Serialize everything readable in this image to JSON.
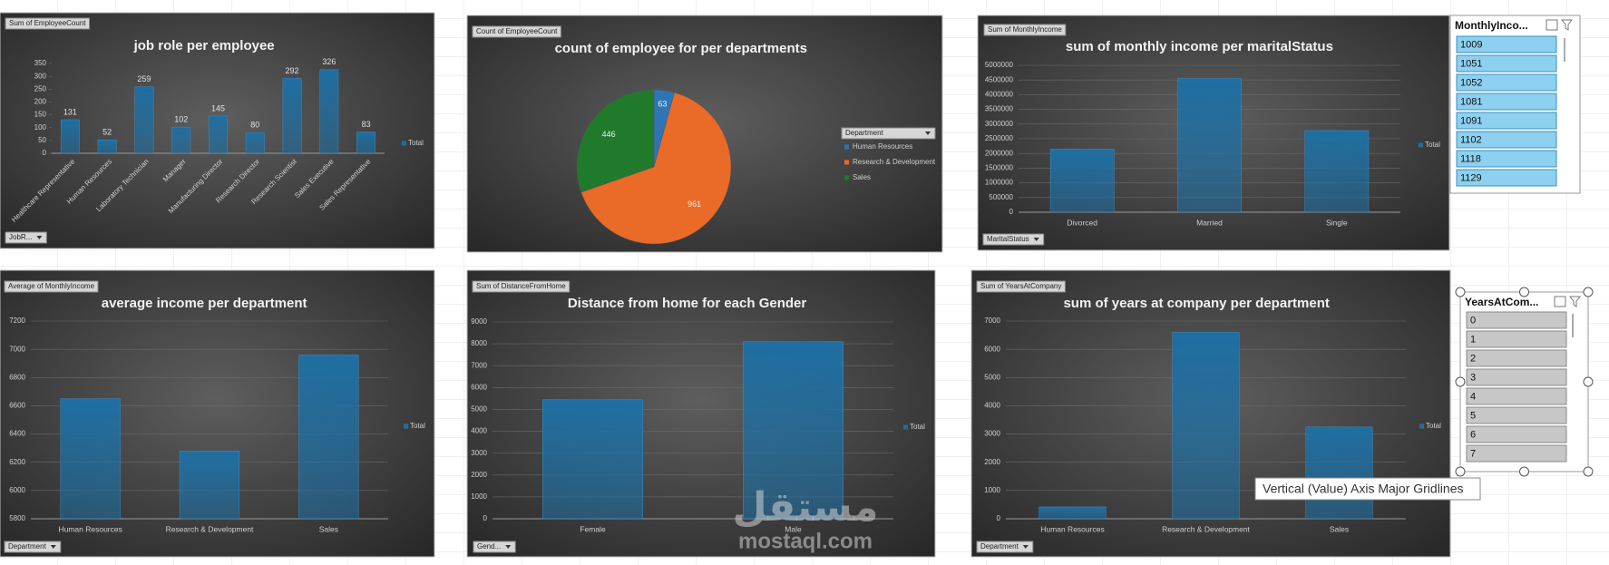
{
  "chart_data": [
    {
      "type": "bar",
      "title": "job role per employee",
      "field_button": "Sum of EmployeeCount",
      "filter_button": "JobR...",
      "categories": [
        "Healthcare Representative",
        "Human Resources",
        "Laboratory Technician",
        "Manager",
        "Manufacturing Director",
        "Research Director",
        "Research Scientist",
        "Sales Executive",
        "Sales Representative"
      ],
      "series": [
        {
          "name": "Total",
          "color": "#1f6fa3",
          "values": [
            131,
            52,
            259,
            102,
            145,
            80,
            292,
            326,
            83
          ]
        }
      ],
      "ylim": [
        0,
        350
      ],
      "yticks": [
        0,
        50,
        100,
        150,
        200,
        250,
        300,
        350
      ],
      "grid": false,
      "data_labels": true
    },
    {
      "type": "pie",
      "title": "count of employee for per departments",
      "field_button": "Count of EmployeeCount",
      "legend_title": "Department",
      "categories": [
        "Human Resources",
        "Research & Development",
        "Sales"
      ],
      "values": [
        63,
        961,
        446
      ],
      "colors": [
        "#2e75b6",
        "#ea6a28",
        "#1f7a2c"
      ],
      "data_labels": true
    },
    {
      "type": "bar",
      "title": "sum of monthly income per maritalStatus",
      "field_button": "Sum of MonthlyIncome",
      "filter_button": "MaritalStatus",
      "categories": [
        "Divorced",
        "Married",
        "Single"
      ],
      "series": [
        {
          "name": "Total",
          "color": "#1f6fa3",
          "values": [
            2150000,
            4550000,
            2780000
          ]
        }
      ],
      "ylim": [
        0,
        5000000
      ],
      "yticks": [
        0,
        500000,
        1000000,
        1500000,
        2000000,
        2500000,
        3000000,
        3500000,
        4000000,
        4500000,
        5000000
      ],
      "grid": true
    },
    {
      "type": "bar",
      "title": "average income per department",
      "field_button": "Average of MonthlyIncome",
      "filter_button": "Department",
      "categories": [
        "Human Resources",
        "Research & Development",
        "Sales"
      ],
      "series": [
        {
          "name": "Total",
          "color": "#1f6fa3",
          "values": [
            6650,
            6280,
            6960
          ]
        }
      ],
      "ylim": [
        5800,
        7200
      ],
      "yticks": [
        5800,
        6000,
        6200,
        6400,
        6600,
        6800,
        7000,
        7200
      ],
      "grid": true
    },
    {
      "type": "bar",
      "title": "Distance from home for each Gender",
      "field_button": "Sum of DistanceFromHome",
      "filter_button": "Gend...",
      "categories": [
        "Female",
        "Male"
      ],
      "series": [
        {
          "name": "Total",
          "color": "#1f6fa3",
          "values": [
            5450,
            8100
          ]
        }
      ],
      "ylim": [
        0,
        9000
      ],
      "yticks": [
        0,
        1000,
        2000,
        3000,
        4000,
        5000,
        6000,
        7000,
        8000,
        9000
      ],
      "grid": true
    },
    {
      "type": "bar",
      "title": "sum of years at company per department",
      "field_button": "Sum of YearsAtCompany",
      "filter_button": "Department",
      "categories": [
        "Human Resources",
        "Research & Development",
        "Sales"
      ],
      "series": [
        {
          "name": "Total",
          "color": "#1f6fa3",
          "values": [
            420,
            6600,
            3250
          ]
        }
      ],
      "ylim": [
        0,
        7000
      ],
      "yticks": [
        0,
        1000,
        2000,
        3000,
        4000,
        5000,
        6000,
        7000
      ],
      "grid": true
    }
  ],
  "slicers": [
    {
      "title": "MonthlyInco...",
      "items": [
        "1009",
        "1051",
        "1052",
        "1081",
        "1091",
        "1102",
        "1118",
        "1129"
      ]
    },
    {
      "title": "YearsAtCom...",
      "items": [
        "0",
        "1",
        "2",
        "3",
        "4",
        "5",
        "6",
        "7"
      ]
    }
  ],
  "tooltip": "Vertical (Value) Axis Major Gridlines",
  "watermark": {
    "arabic": "مستقل",
    "latin": "mostaql.com"
  }
}
